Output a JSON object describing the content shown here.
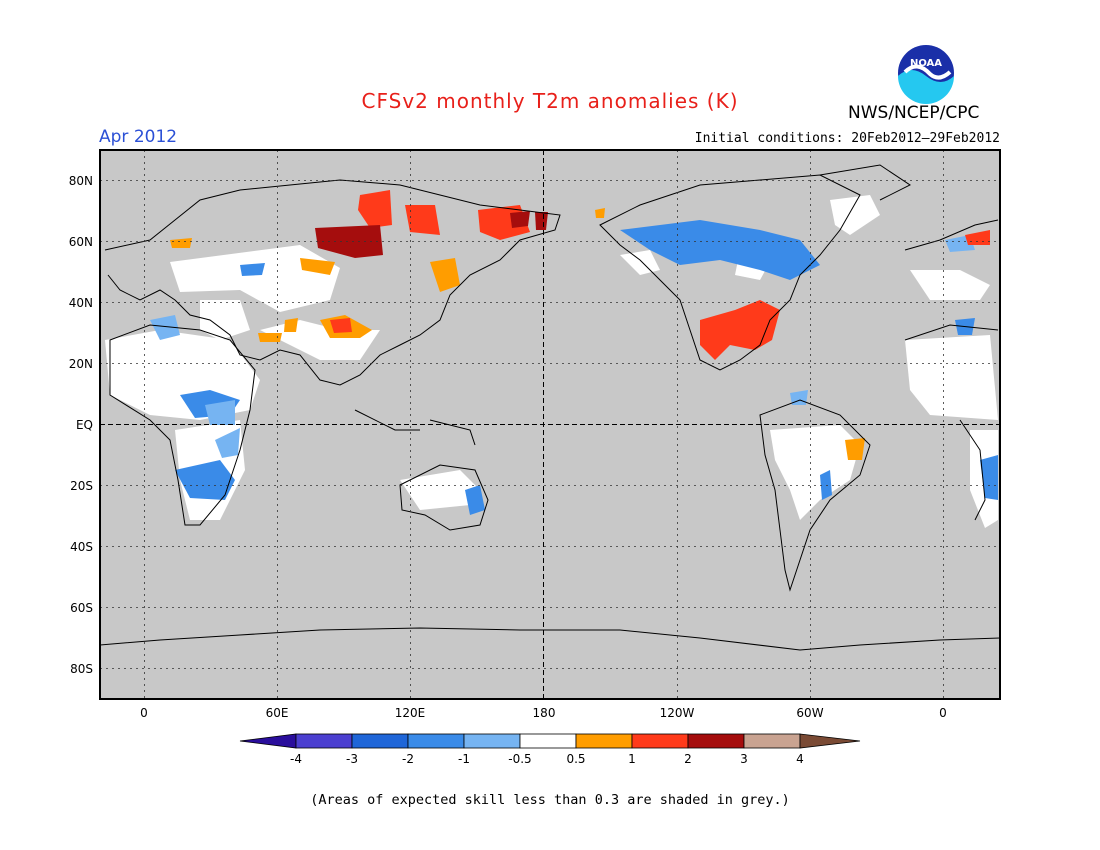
{
  "title": "CFSv2 monthly T2m anomalies (K)",
  "valid_month": "Apr 2012",
  "agency": "NWS/NCEP/CPC",
  "logo_text": "NOAA",
  "initial_conditions": "Initial conditions: 20Feb2012–29Feb2012",
  "footnote": "(Areas of expected skill less than 0.3 are shaded in grey.)",
  "lat_labels": [
    "80N",
    "60N",
    "40N",
    "20N",
    "EQ",
    "20S",
    "40S",
    "60S",
    "80S"
  ],
  "lon_labels": [
    "0",
    "60E",
    "120E",
    "180",
    "120W",
    "60W",
    "0"
  ],
  "colorbar": {
    "labels": [
      "-4",
      "-3",
      "-2",
      "-1",
      "-0.5",
      "0.5",
      "1",
      "2",
      "3",
      "4"
    ],
    "colors": [
      "#2a0e9c",
      "#4b3fd0",
      "#1f66d8",
      "#3a8be8",
      "#76b4f2",
      "#ffffff",
      "#ff9d00",
      "#ff3a1a",
      "#a50d0d",
      "#c9a391",
      "#7a4a34"
    ]
  },
  "map_colors": {
    "skill_grey": "#c8c8c8",
    "coastline": "#000000"
  }
}
